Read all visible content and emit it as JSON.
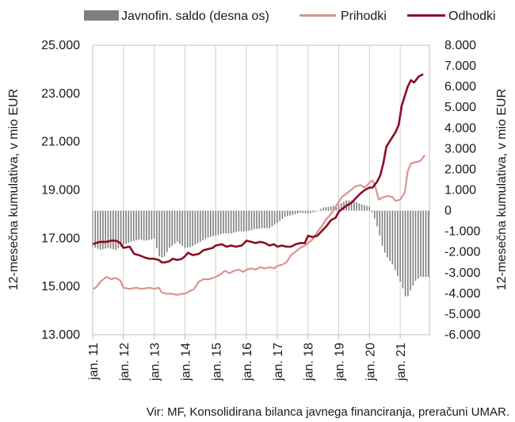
{
  "chart_data": {
    "type": "line",
    "legend": {
      "placement": "top",
      "entries": [
        {
          "key": "bars",
          "label": "Javnofin. saldo (desna os)",
          "color": "#7f7f7f"
        },
        {
          "key": "rev",
          "label": "Prihodki",
          "color": "#d9958f"
        },
        {
          "key": "exp",
          "label": "Odhodki",
          "color": "#8b0c24"
        }
      ]
    },
    "y_left": {
      "label": "12-mesečna kumulativa, v mio EUR",
      "range": [
        13000,
        25000
      ],
      "ticks": [
        13000,
        15000,
        17000,
        19000,
        21000,
        23000,
        25000
      ],
      "tick_labels": [
        "13.000",
        "15.000",
        "17.000",
        "19.000",
        "21.000",
        "23.000",
        "25.000"
      ]
    },
    "y_right": {
      "label": "12-mesečna kumulativa, v mio EUR",
      "range": [
        -6000,
        8000
      ],
      "ticks": [
        -6000,
        -5000,
        -4000,
        -3000,
        -2000,
        -1000,
        0,
        1000,
        2000,
        3000,
        4000,
        5000,
        6000,
        7000,
        8000
      ],
      "tick_labels": [
        "-6.000",
        "-5.000",
        "-4.000",
        "-3.000",
        "-2.000",
        "-1.000",
        "0",
        "1.000",
        "2.000",
        "3.000",
        "4.000",
        "5.000",
        "6.000",
        "7.000",
        "8.000"
      ]
    },
    "x_axis": {
      "range": [
        2011.0,
        2021.95
      ],
      "ticks": [
        2011,
        2012,
        2013,
        2014,
        2015,
        2016,
        2017,
        2018,
        2019,
        2020,
        2021
      ],
      "tick_labels": [
        "jan. 11",
        "jan. 12",
        "jan. 13",
        "jan. 14",
        "jan. 15",
        "jan. 16",
        "jan. 17",
        "jan. 18",
        "jan. 19",
        "jan. 20",
        "jan. 21"
      ]
    },
    "series": [
      {
        "key": "rev",
        "name": "Prihodki",
        "axis": "left",
        "color": "#d9958f",
        "points": [
          [
            2011.0,
            14900
          ],
          [
            2011.1,
            14950
          ],
          [
            2011.25,
            15200
          ],
          [
            2011.45,
            15400
          ],
          [
            2011.6,
            15300
          ],
          [
            2011.75,
            15350
          ],
          [
            2011.9,
            15250
          ],
          [
            2012.0,
            14950
          ],
          [
            2012.2,
            14900
          ],
          [
            2012.4,
            14950
          ],
          [
            2012.6,
            14900
          ],
          [
            2012.85,
            14950
          ],
          [
            2013.0,
            14900
          ],
          [
            2013.15,
            14950
          ],
          [
            2013.25,
            14750
          ],
          [
            2013.4,
            14700
          ],
          [
            2013.55,
            14700
          ],
          [
            2013.75,
            14650
          ],
          [
            2013.9,
            14700
          ],
          [
            2014.0,
            14700
          ],
          [
            2014.15,
            14800
          ],
          [
            2014.3,
            14900
          ],
          [
            2014.45,
            15200
          ],
          [
            2014.6,
            15300
          ],
          [
            2014.8,
            15300
          ],
          [
            2015.0,
            15400
          ],
          [
            2015.15,
            15500
          ],
          [
            2015.3,
            15650
          ],
          [
            2015.45,
            15550
          ],
          [
            2015.6,
            15650
          ],
          [
            2015.75,
            15700
          ],
          [
            2015.9,
            15600
          ],
          [
            2016.0,
            15700
          ],
          [
            2016.15,
            15750
          ],
          [
            2016.3,
            15700
          ],
          [
            2016.45,
            15800
          ],
          [
            2016.6,
            15750
          ],
          [
            2016.75,
            15800
          ],
          [
            2016.9,
            15750
          ],
          [
            2017.0,
            15850
          ],
          [
            2017.15,
            15900
          ],
          [
            2017.3,
            16000
          ],
          [
            2017.45,
            16300
          ],
          [
            2017.6,
            16450
          ],
          [
            2017.75,
            16600
          ],
          [
            2017.9,
            16700
          ],
          [
            2018.0,
            16800
          ],
          [
            2018.15,
            16950
          ],
          [
            2018.3,
            17250
          ],
          [
            2018.45,
            17500
          ],
          [
            2018.6,
            17800
          ],
          [
            2018.75,
            18000
          ],
          [
            2018.9,
            18300
          ],
          [
            2019.0,
            18500
          ],
          [
            2019.1,
            18700
          ],
          [
            2019.25,
            18850
          ],
          [
            2019.4,
            19000
          ],
          [
            2019.55,
            19150
          ],
          [
            2019.7,
            19200
          ],
          [
            2019.85,
            19100
          ],
          [
            2020.0,
            19300
          ],
          [
            2020.1,
            19400
          ],
          [
            2020.2,
            19100
          ],
          [
            2020.3,
            18600
          ],
          [
            2020.45,
            18700
          ],
          [
            2020.6,
            18750
          ],
          [
            2020.75,
            18700
          ],
          [
            2020.85,
            18550
          ],
          [
            2021.0,
            18600
          ],
          [
            2021.15,
            18900
          ],
          [
            2021.25,
            19800
          ],
          [
            2021.35,
            20100
          ],
          [
            2021.5,
            20150
          ],
          [
            2021.65,
            20200
          ],
          [
            2021.8,
            20450
          ]
        ]
      },
      {
        "key": "exp",
        "name": "Odhodki",
        "axis": "left",
        "color": "#8b0c24",
        "points": [
          [
            2011.0,
            16750
          ],
          [
            2011.1,
            16800
          ],
          [
            2011.25,
            16850
          ],
          [
            2011.45,
            16850
          ],
          [
            2011.6,
            16900
          ],
          [
            2011.75,
            16900
          ],
          [
            2011.9,
            16800
          ],
          [
            2012.0,
            16600
          ],
          [
            2012.2,
            16650
          ],
          [
            2012.35,
            16350
          ],
          [
            2012.5,
            16300
          ],
          [
            2012.7,
            16200
          ],
          [
            2012.85,
            16150
          ],
          [
            2013.0,
            16150
          ],
          [
            2013.15,
            16100
          ],
          [
            2013.25,
            16000
          ],
          [
            2013.35,
            16000
          ],
          [
            2013.5,
            16050
          ],
          [
            2013.6,
            16150
          ],
          [
            2013.75,
            16100
          ],
          [
            2013.9,
            16150
          ],
          [
            2014.0,
            16250
          ],
          [
            2014.1,
            16400
          ],
          [
            2014.25,
            16300
          ],
          [
            2014.45,
            16350
          ],
          [
            2014.6,
            16500
          ],
          [
            2014.75,
            16550
          ],
          [
            2014.9,
            16600
          ],
          [
            2015.0,
            16700
          ],
          [
            2015.2,
            16750
          ],
          [
            2015.35,
            16650
          ],
          [
            2015.5,
            16700
          ],
          [
            2015.65,
            16650
          ],
          [
            2015.85,
            16700
          ],
          [
            2016.0,
            16900
          ],
          [
            2016.15,
            16850
          ],
          [
            2016.3,
            16800
          ],
          [
            2016.45,
            16850
          ],
          [
            2016.6,
            16800
          ],
          [
            2016.75,
            16700
          ],
          [
            2016.9,
            16750
          ],
          [
            2017.0,
            16650
          ],
          [
            2017.15,
            16700
          ],
          [
            2017.3,
            16650
          ],
          [
            2017.45,
            16650
          ],
          [
            2017.6,
            16750
          ],
          [
            2017.75,
            16800
          ],
          [
            2017.9,
            16800
          ],
          [
            2018.0,
            17100
          ],
          [
            2018.15,
            17050
          ],
          [
            2018.3,
            17100
          ],
          [
            2018.45,
            17300
          ],
          [
            2018.6,
            17500
          ],
          [
            2018.75,
            17750
          ],
          [
            2018.9,
            17850
          ],
          [
            2019.0,
            18100
          ],
          [
            2019.1,
            18200
          ],
          [
            2019.25,
            18350
          ],
          [
            2019.4,
            18450
          ],
          [
            2019.55,
            18650
          ],
          [
            2019.7,
            18850
          ],
          [
            2019.85,
            19000
          ],
          [
            2020.0,
            19100
          ],
          [
            2020.1,
            19100
          ],
          [
            2020.25,
            19350
          ],
          [
            2020.35,
            19600
          ],
          [
            2020.45,
            20100
          ],
          [
            2020.55,
            20800
          ],
          [
            2020.7,
            21100
          ],
          [
            2020.85,
            21400
          ],
          [
            2020.95,
            21700
          ],
          [
            2021.05,
            22500
          ],
          [
            2021.15,
            22900
          ],
          [
            2021.25,
            23300
          ],
          [
            2021.35,
            23550
          ],
          [
            2021.45,
            23450
          ],
          [
            2021.6,
            23700
          ],
          [
            2021.75,
            23800
          ]
        ]
      },
      {
        "key": "bars",
        "name": "Javnofin. saldo (desna os)",
        "type": "bar",
        "axis": "right",
        "color": "#7f7f7f",
        "points": [
          [
            2011.0,
            -1750
          ],
          [
            2011.25,
            -1900
          ],
          [
            2011.5,
            -1800
          ],
          [
            2011.75,
            -1900
          ],
          [
            2012.0,
            -1650
          ],
          [
            2012.25,
            -1500
          ],
          [
            2012.5,
            -1400
          ],
          [
            2012.75,
            -1450
          ],
          [
            2013.0,
            -1350
          ],
          [
            2013.15,
            -2200
          ],
          [
            2013.3,
            -2300
          ],
          [
            2013.5,
            -1800
          ],
          [
            2013.75,
            -1500
          ],
          [
            2014.0,
            -1800
          ],
          [
            2014.2,
            -1750
          ],
          [
            2014.5,
            -1500
          ],
          [
            2014.75,
            -1300
          ],
          [
            2015.0,
            -1200
          ],
          [
            2015.25,
            -1100
          ],
          [
            2015.5,
            -1100
          ],
          [
            2015.75,
            -1000
          ],
          [
            2016.0,
            -1000
          ],
          [
            2016.25,
            -900
          ],
          [
            2016.5,
            -850
          ],
          [
            2016.75,
            -850
          ],
          [
            2017.0,
            -600
          ],
          [
            2017.25,
            -300
          ],
          [
            2017.5,
            -200
          ],
          [
            2017.75,
            -100
          ],
          [
            2018.0,
            -150
          ],
          [
            2018.25,
            -50
          ],
          [
            2018.5,
            150
          ],
          [
            2018.75,
            200
          ],
          [
            2019.0,
            300
          ],
          [
            2019.25,
            500
          ],
          [
            2019.5,
            450
          ],
          [
            2019.75,
            300
          ],
          [
            2020.0,
            200
          ],
          [
            2020.15,
            -300
          ],
          [
            2020.3,
            -1000
          ],
          [
            2020.45,
            -1900
          ],
          [
            2020.6,
            -2300
          ],
          [
            2020.75,
            -2600
          ],
          [
            2020.9,
            -3100
          ],
          [
            2021.05,
            -3600
          ],
          [
            2021.2,
            -4300
          ],
          [
            2021.35,
            -3800
          ],
          [
            2021.5,
            -3400
          ],
          [
            2021.65,
            -3200
          ],
          [
            2021.8,
            -3200
          ]
        ]
      }
    ],
    "grid": {
      "vertical": true,
      "horizontal": false
    }
  },
  "source_note": "Vir: MF, Konsolidirana bilanca javnega financiranja, preračuni UMAR."
}
